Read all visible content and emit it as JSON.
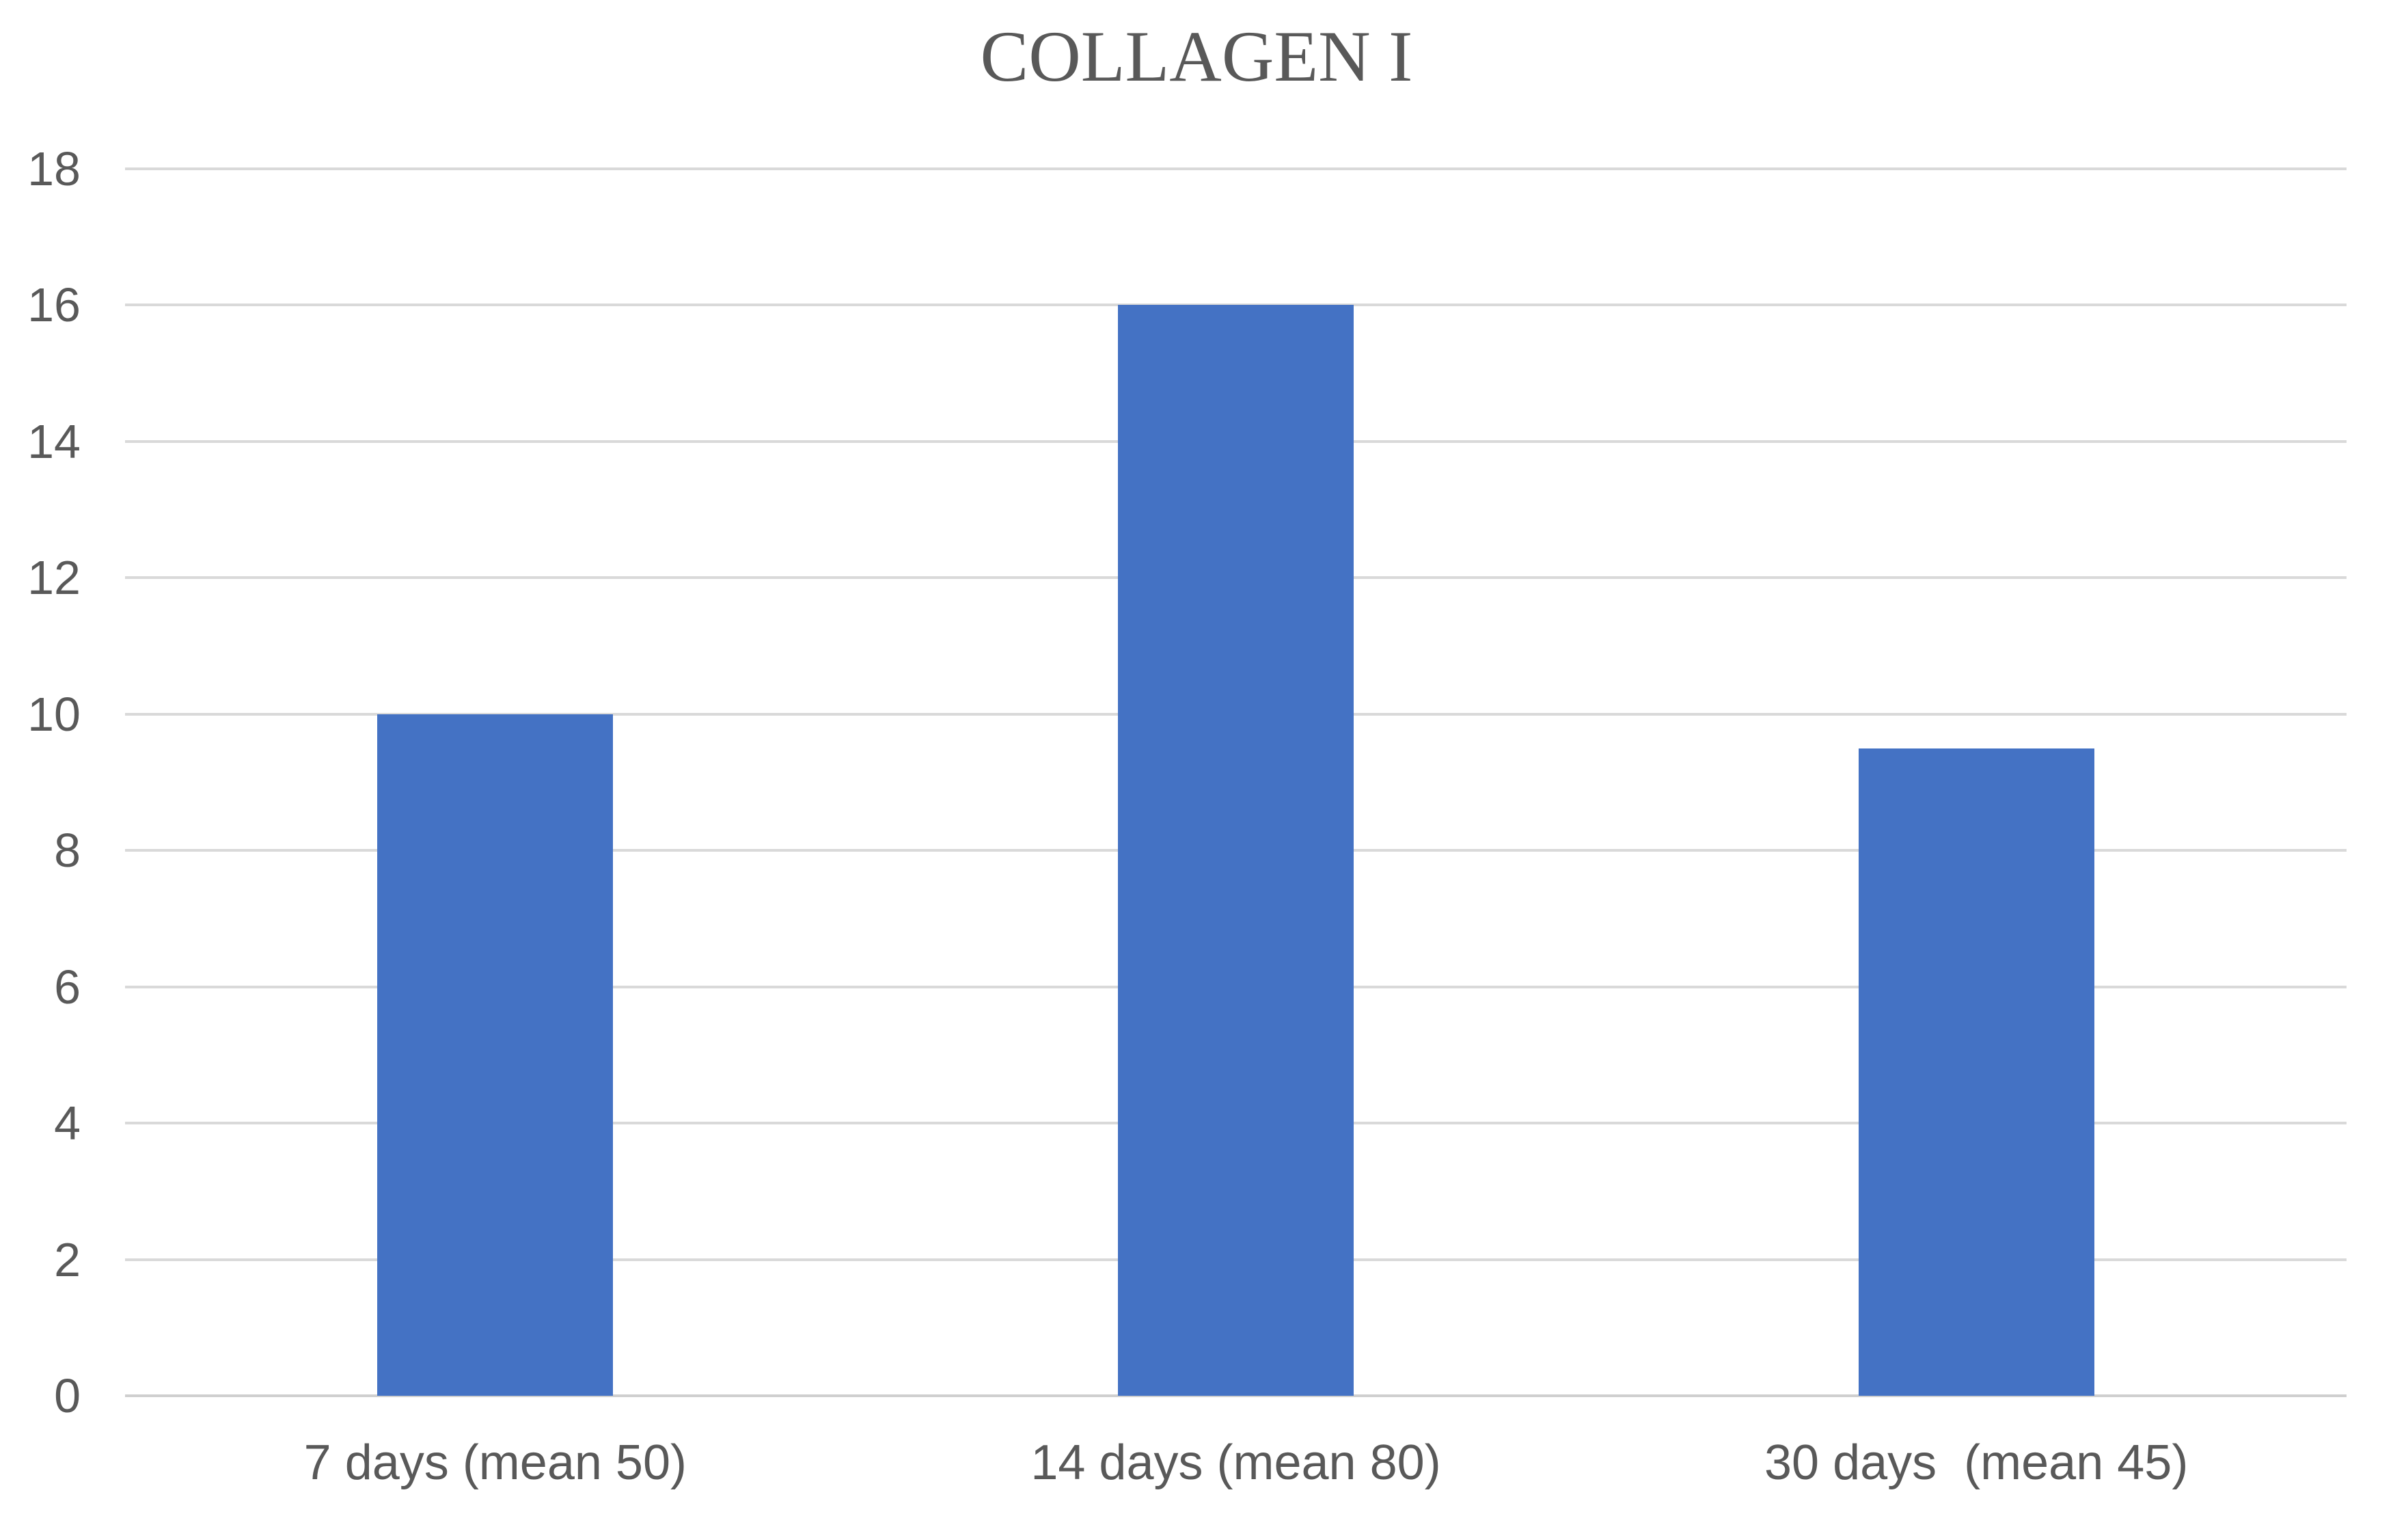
{
  "chart_data": {
    "type": "bar",
    "title": "COLLAGEN I",
    "categories": [
      "7 days (mean 50)",
      "14 days (mean 80)",
      "30 days  (mean 45)"
    ],
    "values": [
      10,
      16,
      9.5
    ],
    "series_name": "",
    "xlabel": "",
    "ylabel": "",
    "ylim": [
      0,
      18
    ],
    "yticks": [
      0,
      2,
      4,
      6,
      8,
      10,
      12,
      14,
      16,
      18
    ],
    "grid": true,
    "legend": false,
    "colors": {
      "bar": "#4472C4",
      "gridline": "#D9D9D9",
      "axis_line": "#CFCFCF",
      "text": "#595959"
    }
  }
}
